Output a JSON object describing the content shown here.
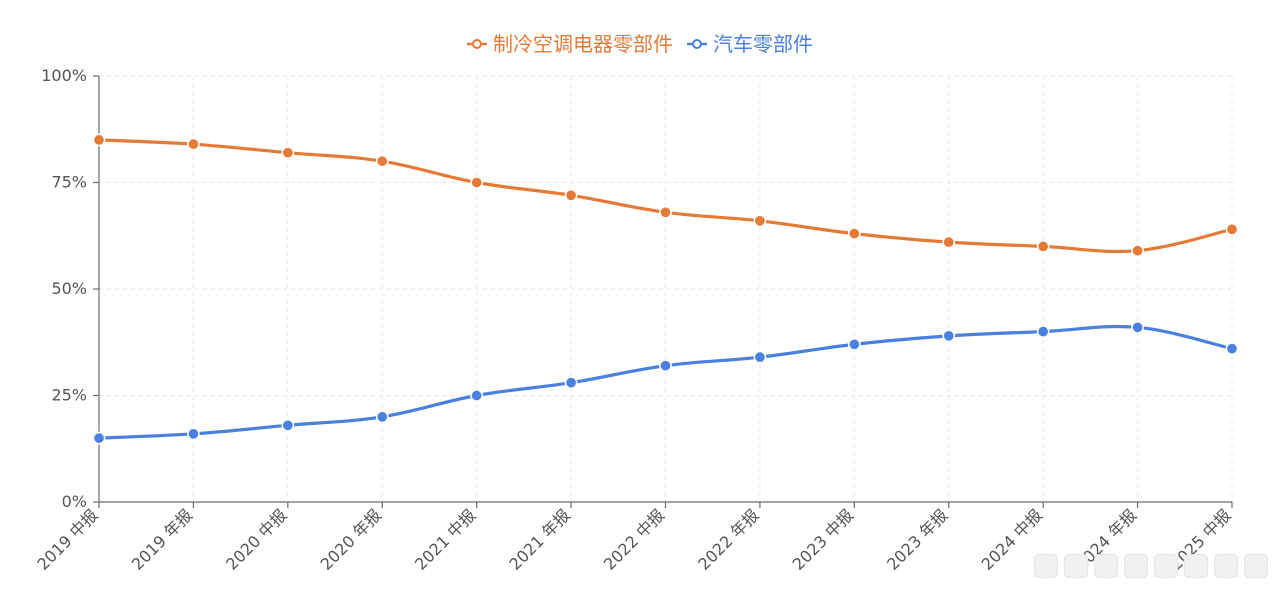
{
  "chart_data": {
    "type": "line",
    "categories": [
      "2019 中报",
      "2019 年报",
      "2020 中报",
      "2020 年报",
      "2021 中报",
      "2021 年报",
      "2022 中报",
      "2022 年报",
      "2023 中报",
      "2023 年报",
      "2024 中报",
      "2024 年报",
      "2025 中报"
    ],
    "series": [
      {
        "name": "制冷空调电器零部件",
        "color": "#E57A37",
        "values": [
          85,
          84,
          82,
          80,
          75,
          72,
          68,
          66,
          63,
          61,
          60,
          59,
          64
        ]
      },
      {
        "name": "汽车零部件",
        "color": "#4A80E0",
        "values": [
          15,
          16,
          18,
          20,
          25,
          28,
          32,
          34,
          37,
          39,
          40,
          41,
          36
        ]
      }
    ],
    "ylim": [
      0,
      100
    ],
    "yticks": [
      "0%",
      "25%",
      "50%",
      "75%",
      "100%"
    ],
    "ytick_values": [
      0,
      25,
      50,
      75,
      100
    ],
    "grid": true,
    "legend_position": "top-center",
    "title": "",
    "xlabel": "",
    "ylabel": ""
  }
}
